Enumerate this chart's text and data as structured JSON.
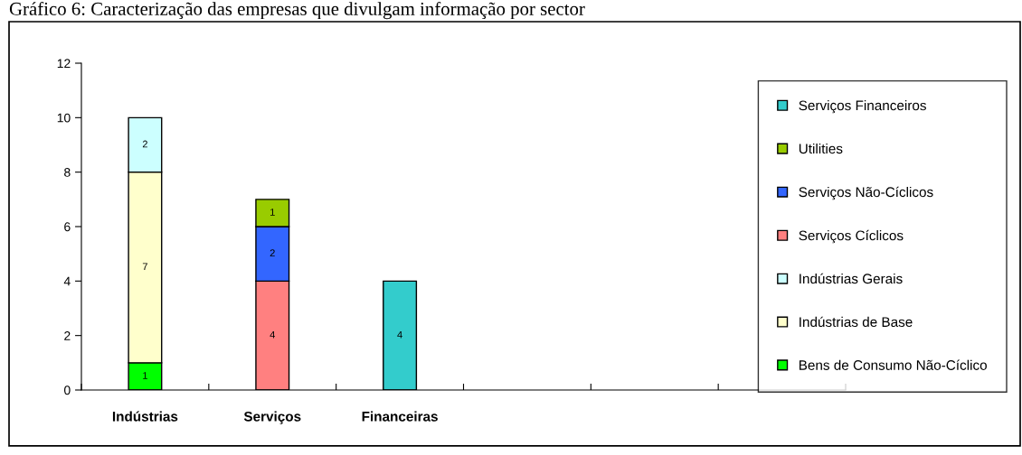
{
  "chart_data": {
    "type": "bar",
    "title": "Gráfico 6: Caracterização das empresas que divulgam informação por sector",
    "categories": [
      "Indústrias",
      "Serviços",
      "Financeiras",
      null,
      null,
      null
    ],
    "stacked": true,
    "data_labels": true,
    "legend": "right",
    "grid": false,
    "ylim": [
      0,
      12
    ],
    "yticks": [
      0,
      2,
      4,
      6,
      8,
      10,
      12
    ],
    "series": [
      {
        "name": "Bens de Consumo Não-Cíclico",
        "color": "#00ff00",
        "values": [
          1,
          null,
          null,
          null,
          null,
          null
        ]
      },
      {
        "name": "Indústrias de Base",
        "color": "#ffffcc",
        "values": [
          7,
          null,
          null,
          null,
          null,
          null
        ]
      },
      {
        "name": "Indústrias Gerais",
        "color": "#ccffff",
        "values": [
          2,
          null,
          null,
          null,
          null,
          null
        ]
      },
      {
        "name": "Serviços Cíclicos",
        "color": "#ff8080",
        "values": [
          null,
          4,
          null,
          null,
          null,
          null
        ]
      },
      {
        "name": "Serviços Não-Cíclicos",
        "color": "#3366ff",
        "values": [
          null,
          2,
          null,
          null,
          null,
          null
        ]
      },
      {
        "name": "Utilities",
        "color": "#99cc00",
        "values": [
          null,
          1,
          null,
          null,
          null,
          null
        ]
      },
      {
        "name": "Serviços Financeiros",
        "color": "#33cccc",
        "values": [
          null,
          null,
          4,
          null,
          null,
          null
        ]
      }
    ]
  }
}
